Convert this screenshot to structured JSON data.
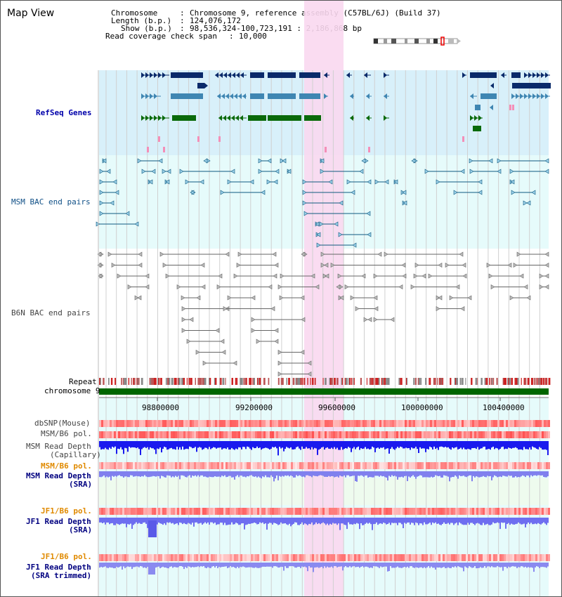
{
  "title": "Map View",
  "info": {
    "chromosome_label": "Chromosome",
    "chromosome_value": "Chromosome 9, reference assembly (C57BL/6J) (Build 37)",
    "length_label": "Length (b.p.)",
    "length_value": "124,076,172",
    "show_label": "Show (b.p.)",
    "show_value": "98,536,324-100,723,191 : 2,186,868 bp",
    "coverage_label": "Read coverage check span",
    "coverage_value": "10,000"
  },
  "tracks": {
    "refseq": "RefSeq Genes",
    "msm_bac": "MSM BAC end pairs",
    "b6n_bac": "B6N BAC end pairs",
    "repeat": "Repeat",
    "chromosome": "chromosome 9",
    "dbsnp": "dbSNP(Mouse)",
    "msm_b6_pol": "MSM/B6 pol.",
    "msm_depth_cap_1": "MSM Read Depth",
    "msm_depth_cap_2": "(Capillary)",
    "msm_b6_pol_2": "MSM/B6 pol.",
    "msm_depth_sra_1": "MSM Read Depth",
    "msm_depth_sra_2": "(SRA)",
    "jf1_b6_pol": "JF1/B6 pol.",
    "jf1_depth_sra_1": "JF1 Read Depth",
    "jf1_depth_sra_2": "(SRA)",
    "jf1_b6_pol_2": "JF1/B6 pol.",
    "jf1_depth_trim_1": "JF1 Read Depth",
    "jf1_depth_trim_2": "(SRA trimmed)"
  },
  "ticks": [
    "98800000",
    "99200000",
    "99600000",
    "100000000",
    "100400000"
  ],
  "colors": {
    "refseq_bg": "#d8f0fa",
    "bac_bg": "#e6fbfb",
    "highlight": "#f9d8f0",
    "gene_navy": "#0a2a6a",
    "gene_steel": "#3f86b2",
    "gene_green": "#0a6a0a",
    "msm_line": "#0f5a80",
    "b6n_line": "#666666",
    "chrom_green": "#006600",
    "depth_blue": "#1a1aee",
    "depth_light": "#7070f0"
  }
}
